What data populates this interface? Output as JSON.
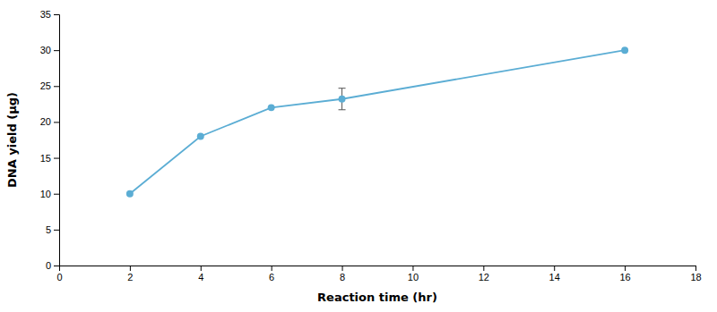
{
  "chart_data": {
    "type": "line",
    "x": [
      2,
      4,
      6,
      8,
      16
    ],
    "values": [
      10,
      18,
      22,
      23.2,
      30
    ],
    "errors": [
      0,
      0,
      0,
      1.5,
      0
    ],
    "color": "#5badd4",
    "marker": "circle",
    "xlabel": "Reaction time (hr)",
    "ylabel": "DNA yield (μg)",
    "xlim": [
      0,
      18
    ],
    "ylim": [
      0,
      35
    ],
    "xticks": [
      0,
      2,
      4,
      6,
      8,
      10,
      12,
      14,
      16,
      18
    ],
    "yticks": [
      0,
      5,
      10,
      15,
      20,
      25,
      30,
      35
    ],
    "grid": false
  }
}
